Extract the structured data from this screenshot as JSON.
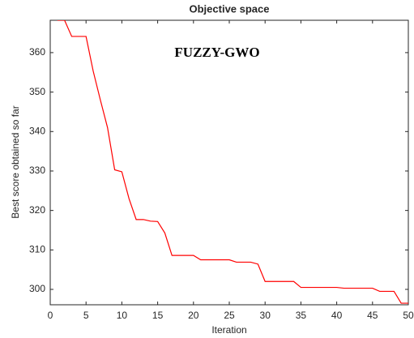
{
  "chart_data": {
    "type": "line",
    "title": "Objective space",
    "annotation": "FUZZY-GWO",
    "x_label": "Iteration",
    "y_label": "Best score obtained so far",
    "x": [
      1,
      2,
      3,
      4,
      5,
      6,
      7,
      8,
      9,
      10,
      11,
      12,
      13,
      14,
      15,
      16,
      17,
      18,
      19,
      20,
      21,
      22,
      23,
      24,
      25,
      26,
      27,
      28,
      29,
      30,
      31,
      32,
      33,
      34,
      35,
      36,
      37,
      38,
      39,
      40,
      41,
      42,
      43,
      44,
      45,
      46,
      47,
      48,
      49,
      50
    ],
    "series": [
      {
        "color": "#ff0000",
        "values": [
          368.2,
          368.2,
          364.1,
          364.1,
          364.1,
          355.3,
          348,
          341,
          330.3,
          329.8,
          323,
          317.7,
          317.7,
          317.3,
          317.2,
          314.3,
          308.6,
          308.6,
          308.6,
          308.6,
          307.5,
          307.5,
          307.5,
          307.5,
          307.5,
          306.9,
          306.9,
          306.9,
          306.4,
          302,
          302,
          302,
          302,
          302,
          300.5,
          300.5,
          300.5,
          300.5,
          300.5,
          300.5,
          300.3,
          300.3,
          300.3,
          300.3,
          300.3,
          299.5,
          299.5,
          299.5,
          296.5,
          296.5
        ]
      }
    ],
    "xlim": [
      0,
      50
    ],
    "xticks": [
      0,
      5,
      10,
      15,
      20,
      25,
      30,
      35,
      40,
      45,
      50
    ],
    "ylim": [
      296.1,
      368.2
    ],
    "yticks": [
      300,
      310,
      320,
      330,
      340,
      350,
      360
    ]
  }
}
